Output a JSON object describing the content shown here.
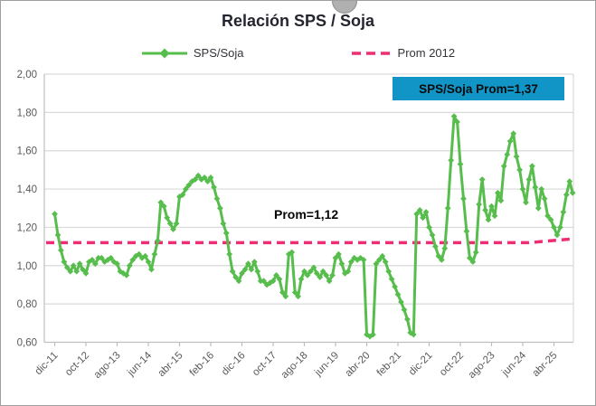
{
  "chart": {
    "title": "Relación SPS / Soja",
    "legend": {
      "sps_soja_label": "SPS/Soja",
      "prom_2012_label": "Prom 2012"
    },
    "prom_annotation": "Prom=1,12",
    "callout_box": {
      "label": "SPS/Soja Prom=1,37",
      "bg_color": "#1195c7"
    },
    "colors": {
      "series_green": "#57bd4d",
      "prom_pink": "#ee2d74",
      "gridline": "#d9d9d9",
      "axis_line": "#bfbfbf",
      "axis_text": "#595959",
      "title_text": "#25252f"
    }
  },
  "chart_data": {
    "type": "line",
    "title": "Relación SPS / Soja",
    "frequency": "monthly",
    "x_start": "dic-11",
    "x_end": "oct-25",
    "x_tick_labels": [
      "dic-11",
      "oct-12",
      "ago-13",
      "jun-14",
      "abr-15",
      "feb-16",
      "dic-16",
      "oct-17",
      "ago-18",
      "jun-19",
      "abr-20",
      "feb-21",
      "dic-21",
      "oct-22",
      "ago-23",
      "jun-24",
      "abr-25"
    ],
    "x_tick_month_step": 10,
    "y_tick_labels": [
      "2,00",
      "1,80",
      "1,60",
      "1,40",
      "1,20",
      "1,00",
      "0,80",
      "0,60"
    ],
    "y_tick_values": [
      2.0,
      1.8,
      1.6,
      1.4,
      1.2,
      1.0,
      0.8,
      0.6
    ],
    "ylim": [
      0.6,
      2.0
    ],
    "grid": "horizontal",
    "legend_position": "top",
    "series": [
      {
        "name": "SPS/Soja",
        "marker": "diamond",
        "color": "#57bd4d",
        "values": [
          1.27,
          1.16,
          1.08,
          1.02,
          0.99,
          0.97,
          1.0,
          0.97,
          1.01,
          0.98,
          0.96,
          1.02,
          1.03,
          1.01,
          1.04,
          1.04,
          1.02,
          1.03,
          1.04,
          1.02,
          1.01,
          0.97,
          0.96,
          0.95,
          1.0,
          1.03,
          1.05,
          1.06,
          1.04,
          1.05,
          1.02,
          0.98,
          1.06,
          1.13,
          1.33,
          1.31,
          1.25,
          1.22,
          1.19,
          1.22,
          1.36,
          1.37,
          1.4,
          1.42,
          1.44,
          1.45,
          1.47,
          1.45,
          1.46,
          1.44,
          1.46,
          1.41,
          1.35,
          1.3,
          1.22,
          1.17,
          1.06,
          0.97,
          0.94,
          0.92,
          0.96,
          0.98,
          1.01,
          0.98,
          1.02,
          0.97,
          0.92,
          0.92,
          0.9,
          0.91,
          0.92,
          0.95,
          0.93,
          0.86,
          0.84,
          1.06,
          1.07,
          0.86,
          0.84,
          0.93,
          0.97,
          0.95,
          0.97,
          0.99,
          0.96,
          0.94,
          0.97,
          0.95,
          0.92,
          0.95,
          1.04,
          1.06,
          1.01,
          0.96,
          0.97,
          1.02,
          1.04,
          1.03,
          1.04,
          1.03,
          0.64,
          0.63,
          0.64,
          1.01,
          1.03,
          1.05,
          1.02,
          0.97,
          0.93,
          0.89,
          0.85,
          0.81,
          0.77,
          0.72,
          0.65,
          0.64,
          1.27,
          1.29,
          1.25,
          1.28,
          1.2,
          1.16,
          1.1,
          1.05,
          1.03,
          1.09,
          1.3,
          1.55,
          1.78,
          1.75,
          1.53,
          1.35,
          1.18,
          1.04,
          1.02,
          1.07,
          1.32,
          1.45,
          1.29,
          1.24,
          1.31,
          1.26,
          1.38,
          1.34,
          1.52,
          1.58,
          1.65,
          1.69,
          1.57,
          1.5,
          1.4,
          1.33,
          1.45,
          1.52,
          1.41,
          1.3,
          1.4,
          1.35,
          1.26,
          1.24,
          1.2,
          1.16,
          1.2,
          1.28,
          1.37,
          1.44,
          1.38
        ]
      },
      {
        "name": "Prom 2012",
        "style": "dashed",
        "color": "#ee2d74",
        "value": 1.12,
        "end_value": 1.14,
        "ramp_start_index": 152
      }
    ],
    "annotations": [
      {
        "text": "Prom=1,12",
        "near_value": 1.12
      },
      {
        "text": "SPS/Soja Prom=1,37",
        "kind": "highlight-box"
      }
    ]
  }
}
